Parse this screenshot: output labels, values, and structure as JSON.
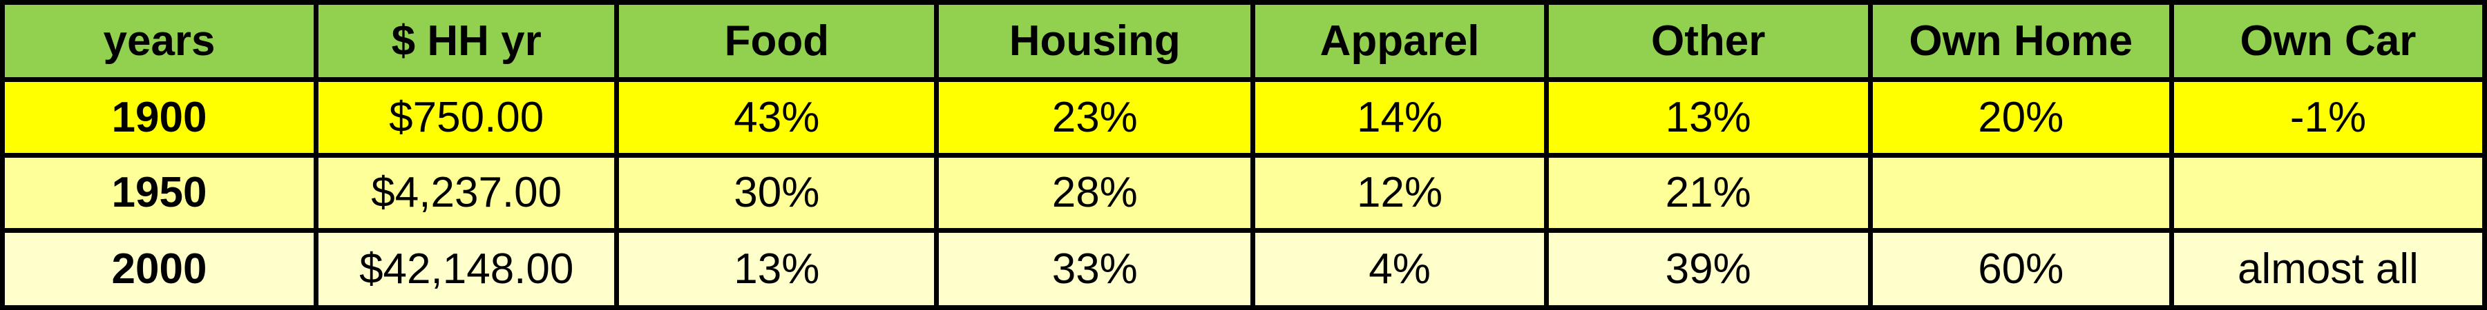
{
  "table": {
    "header": [
      "years",
      "$ HH yr",
      "Food",
      "Housing",
      "Apparel",
      "Other",
      "Own Home",
      "Own Car"
    ],
    "rows": [
      [
        "1900",
        "$750.00",
        "43%",
        "23%",
        "14%",
        "13%",
        "20%",
        "-1%"
      ],
      [
        "1950",
        "$4,237.00",
        "30%",
        "28%",
        "12%",
        "21%",
        null,
        null
      ],
      [
        "2000",
        "$42,148.00",
        "13%",
        "33%",
        "4%",
        "39%",
        "60%",
        "almost all"
      ]
    ]
  }
}
